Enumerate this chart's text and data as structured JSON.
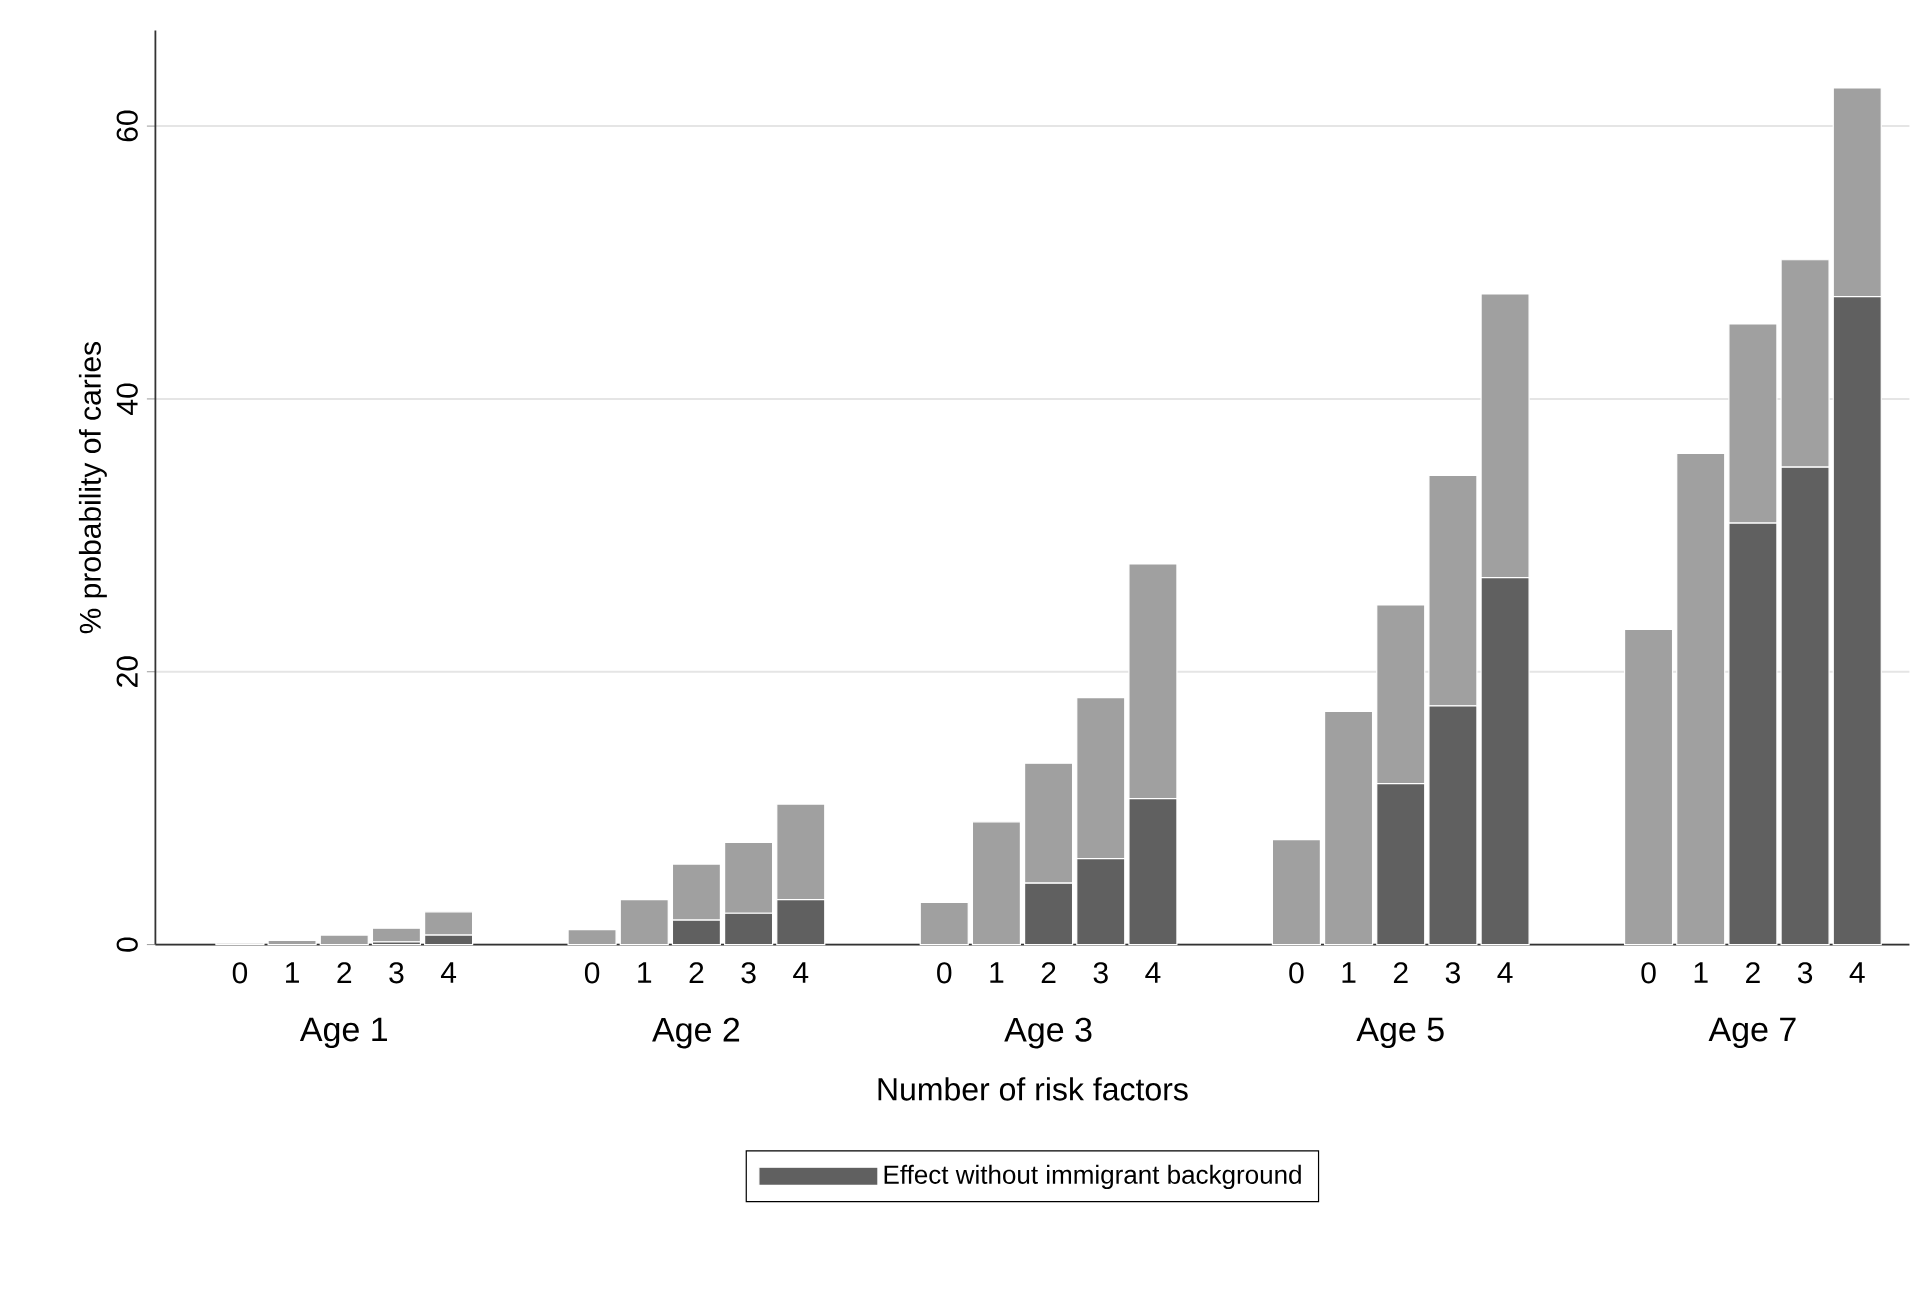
{
  "chart_data": {
    "type": "bar",
    "stacked": true,
    "xlabel": "Number of risk factors",
    "ylabel": "% probability of caries",
    "categories": [
      "0",
      "1",
      "2",
      "3",
      "4",
      "0",
      "1",
      "2",
      "3",
      "4",
      "0",
      "1",
      "2",
      "3",
      "4",
      "0",
      "1",
      "2",
      "3",
      "4",
      "0",
      "1",
      "2",
      "3",
      "4"
    ],
    "annotations": [
      "Age 1",
      "Age 2",
      "Age 3",
      "Age 5",
      "Age 7"
    ],
    "series": [
      {
        "name": "Effect without immigrant background",
        "color": "#606060",
        "values": [
          0,
          0,
          0,
          0.2,
          0.7,
          0,
          0,
          1.8,
          2.3,
          3.3,
          0,
          0,
          4.5,
          6.3,
          10.7,
          0,
          0,
          11.8,
          17.5,
          26.9,
          0,
          0,
          30.9,
          35.0,
          47.5
        ]
      },
      {
        "color": "#a0a0a0",
        "values": [
          0.1,
          0.3,
          0.7,
          1.0,
          1.7,
          1.1,
          3.3,
          4.1,
          5.2,
          7.0,
          3.1,
          9.0,
          8.8,
          11.8,
          17.2,
          7.7,
          17.1,
          13.1,
          16.9,
          20.8,
          23.1,
          36.0,
          14.6,
          15.2,
          15.3
        ]
      }
    ],
    "ylim": [
      0,
      67
    ],
    "yticks": [
      0,
      20,
      40,
      60
    ],
    "grid": "y",
    "legend": "bottom"
  }
}
